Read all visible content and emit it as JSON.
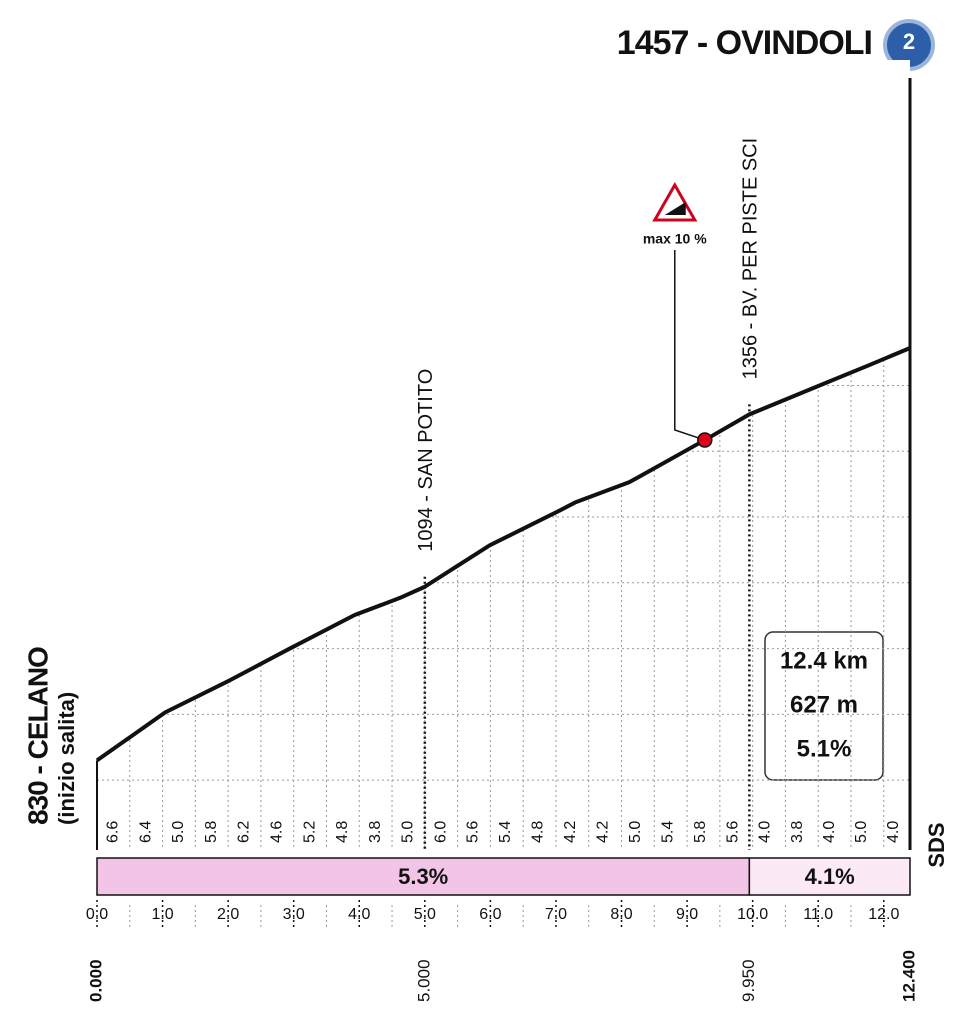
{
  "chart_data": {
    "type": "profile",
    "title": "1457 - OVINDOLI",
    "badge": "2",
    "start_label": "830 - CELANO",
    "start_sublabel": "(inizio salita)",
    "x": [
      0,
      1.04,
      2.03,
      2.94,
      3.93,
      4.62,
      5.0,
      5.99,
      7.06,
      7.29,
      8.12,
      9.27,
      9.95,
      11.02,
      11.78,
      12.4
    ],
    "values": [
      830,
      903,
      952,
      1000,
      1051,
      1077,
      1094,
      1157,
      1210,
      1222,
      1253,
      1317,
      1356,
      1400,
      1431,
      1457
    ],
    "xlim": [
      0,
      12.4
    ],
    "ylim": [
      785,
      1460
    ],
    "yticks": [
      800,
      900,
      1000,
      1100,
      1200,
      1300,
      1400
    ],
    "xticks": [
      {
        "value": 0,
        "label": "0.0"
      },
      {
        "value": 1,
        "label": "1.0"
      },
      {
        "value": 2,
        "label": "2.0"
      },
      {
        "value": 3,
        "label": "3.0"
      },
      {
        "value": 4,
        "label": "4.0"
      },
      {
        "value": 5,
        "label": "5.0"
      },
      {
        "value": 6,
        "label": "6.0"
      },
      {
        "value": 7,
        "label": "7.0"
      },
      {
        "value": 8,
        "label": "8.0"
      },
      {
        "value": 9,
        "label": "9.0"
      },
      {
        "value": 10,
        "label": "10.0"
      },
      {
        "value": 11,
        "label": "11.0"
      },
      {
        "value": 12,
        "label": "12.0"
      }
    ],
    "distance_labels": [
      {
        "value": 0,
        "label": "0.000"
      },
      {
        "value": 5,
        "label": "5.000"
      },
      {
        "value": 9.95,
        "label": "9.950"
      },
      {
        "value": 12.4,
        "label": "12.400"
      }
    ],
    "points": [
      {
        "x": 5,
        "label": "1094 - SAN POTITO"
      },
      {
        "x": 9.95,
        "label": "1356 - BV. PER PISTE SCI"
      }
    ],
    "gradients": {
      "values": [
        6.6,
        6.4,
        5,
        5.8,
        6.2,
        4.6,
        5.2,
        4.8,
        3.8,
        5,
        6,
        5.6,
        5.4,
        4.8,
        4.2,
        4.2,
        5,
        5.4,
        5.8,
        5.6,
        4,
        3.8,
        4,
        5,
        4
      ],
      "value_labels": [
        "6.6",
        "6.4",
        "5.0",
        "5.8",
        "6.2",
        "4.6",
        "5.2",
        "4.8",
        "3.8",
        "5.0",
        "6.0",
        "5.6",
        "5.4",
        "4.8",
        "4.2",
        "4.2",
        "5.0",
        "5.4",
        "5.8",
        "5.6",
        "4.0",
        "3.8",
        "4.0",
        "5.0",
        "4.0"
      ]
    },
    "sectors": [
      {
        "start": 0,
        "end": 9.95,
        "value": 5.3,
        "label": "5.3%",
        "color": "#f2c4e6"
      },
      {
        "start": 9.95,
        "end": 12.4,
        "value": 4.1,
        "label": "4.1%",
        "color": "#fbe9f5"
      }
    ],
    "max_gradient": {
      "x": 9.27,
      "value": 10,
      "label": "max 10 %"
    },
    "summary": [
      "12.4 km",
      "627 m",
      "5.1%"
    ],
    "logo": "SDS"
  }
}
